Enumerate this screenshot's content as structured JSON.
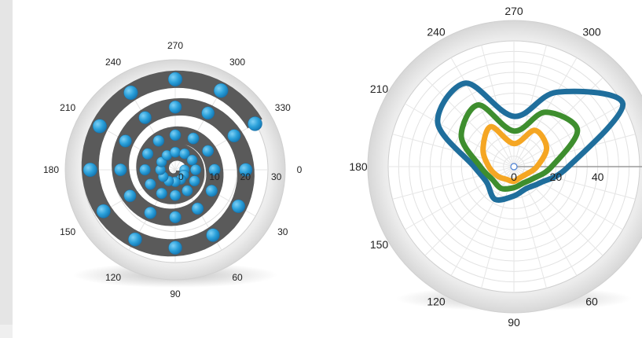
{
  "chart_data": [
    {
      "type": "polar-scatter",
      "title": "",
      "angle_ticks": [
        "270",
        "300",
        "330",
        "0",
        "30",
        "60",
        "90",
        "120",
        "150",
        "180",
        "210",
        "240"
      ],
      "radial_ticks": [
        "0",
        "10",
        "20",
        "30"
      ],
      "rlim": [
        0,
        30
      ],
      "colors": {
        "marker": "#2aa0da",
        "band": "#5a5a5a"
      },
      "series": [
        {
          "points": [
            [
              0,
              3
            ],
            [
              30,
              3.3
            ],
            [
              60,
              3.6
            ],
            [
              90,
              3.9
            ],
            [
              120,
              4.2
            ],
            [
              150,
              4.5
            ],
            [
              180,
              4.8
            ],
            [
              210,
              5.1
            ],
            [
              240,
              5.4
            ],
            [
              270,
              5.7
            ],
            [
              300,
              6.0
            ],
            [
              330,
              6.3
            ],
            [
              0,
              6.6
            ],
            [
              30,
              7.2
            ],
            [
              60,
              7.8
            ],
            [
              90,
              8.3
            ],
            [
              120,
              8.8
            ],
            [
              150,
              9.3
            ],
            [
              180,
              9.8
            ],
            [
              210,
              10.3
            ],
            [
              240,
              10.8
            ],
            [
              270,
              11.2
            ],
            [
              300,
              11.7
            ],
            [
              330,
              12.2
            ],
            [
              0,
              12.7
            ],
            [
              30,
              13.6
            ],
            [
              60,
              14.5
            ],
            [
              90,
              15.3
            ],
            [
              120,
              16.1
            ],
            [
              150,
              16.9
            ],
            [
              180,
              17.7
            ],
            [
              210,
              18.6
            ],
            [
              240,
              19.5
            ],
            [
              270,
              20.3
            ],
            [
              300,
              21.2
            ],
            [
              330,
              22.0
            ],
            [
              0,
              22.8
            ],
            [
              30,
              23.6
            ],
            [
              60,
              24.4
            ],
            [
              90,
              25.2
            ],
            [
              120,
              26.0
            ],
            [
              150,
              26.8
            ],
            [
              180,
              27.5
            ],
            [
              210,
              28.2
            ],
            [
              240,
              28.8
            ],
            [
              270,
              29.3
            ],
            [
              300,
              29.6
            ],
            [
              330,
              29.8
            ]
          ]
        }
      ]
    },
    {
      "type": "polar-line",
      "title": "",
      "angle_ticks": [
        "270",
        "300",
        "180",
        "210",
        "240",
        "150",
        "120",
        "90",
        "60"
      ],
      "radial_ticks": [
        "0",
        "20",
        "40"
      ],
      "rlim": [
        0,
        60
      ],
      "colors": {
        "outer": "#1f6e9c",
        "middle": "#3e8e2e",
        "inner": "#f5a623"
      },
      "series": [
        {
          "color": "#1f6e9c",
          "points": [
            [
              0,
              26
            ],
            [
              30,
              15
            ],
            [
              60,
              12
            ],
            [
              90,
              14
            ],
            [
              120,
              18
            ],
            [
              150,
              15
            ],
            [
              180,
              19
            ],
            [
              210,
              42
            ],
            [
              240,
              46
            ],
            [
              270,
              24
            ],
            [
              300,
              41
            ],
            [
              330,
              60
            ]
          ]
        },
        {
          "color": "#3e8e2e",
          "points": [
            [
              0,
              18
            ],
            [
              30,
              11
            ],
            [
              60,
              9
            ],
            [
              90,
              10
            ],
            [
              120,
              12
            ],
            [
              150,
              12
            ],
            [
              180,
              16
            ],
            [
              210,
              29
            ],
            [
              240,
              34
            ],
            [
              270,
              17
            ],
            [
              300,
              30
            ],
            [
              330,
              35
            ]
          ]
        },
        {
          "color": "#f5a623",
          "points": [
            [
              0,
              11
            ],
            [
              30,
              7
            ],
            [
              60,
              6
            ],
            [
              90,
              7
            ],
            [
              120,
              7
            ],
            [
              150,
              9
            ],
            [
              180,
              12
            ],
            [
              210,
              17
            ],
            [
              240,
              22
            ],
            [
              270,
              11
            ],
            [
              300,
              20
            ],
            [
              330,
              18
            ]
          ]
        }
      ]
    }
  ]
}
